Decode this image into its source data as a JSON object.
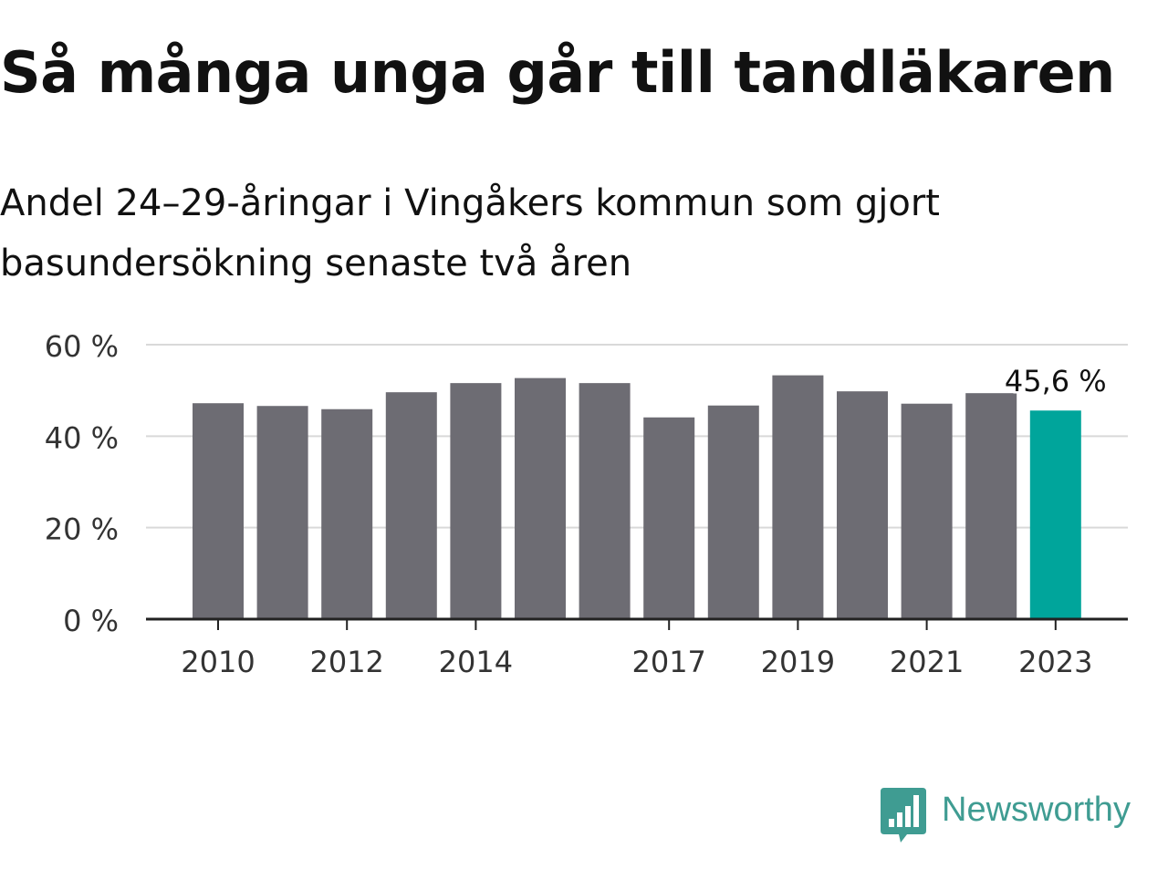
{
  "header": {
    "title": "Så många unga går till tandläkaren",
    "subtitle": "Andel 24–29-åringar i Vingåkers kommun som gjort basundersökning senaste två åren"
  },
  "brand": {
    "name": "Newsworthy",
    "color": "#3f9c92",
    "icon": "newsworthy-logo-icon"
  },
  "colors": {
    "bar": "#6d6c73",
    "highlight": "#00a59b",
    "grid": "#d9d9d9",
    "axis": "#222222",
    "label": "#333333"
  },
  "chart_data": {
    "type": "bar",
    "categories": [
      "2010",
      "2011",
      "2012",
      "2013",
      "2014",
      "2015",
      "2016",
      "2017",
      "2018",
      "2019",
      "2020",
      "2021",
      "2022",
      "2023"
    ],
    "values": [
      47.2,
      46.6,
      45.9,
      49.6,
      51.6,
      52.7,
      51.6,
      44.1,
      46.7,
      53.3,
      49.8,
      47.1,
      49.4,
      45.6
    ],
    "highlight_index": 13,
    "data_labels": [
      {
        "index": 13,
        "text": "45,6 %"
      }
    ],
    "x_tick_labels": [
      "2010",
      "2012",
      "2014",
      "2017",
      "2019",
      "2021",
      "2023"
    ],
    "y_ticks": [
      0,
      20,
      40,
      60
    ],
    "y_tick_labels": [
      "0 %",
      "20 %",
      "40 %",
      "60 %"
    ],
    "ylim": [
      0,
      60
    ],
    "grid": true,
    "legend": "none",
    "xlabel": "",
    "ylabel": ""
  }
}
